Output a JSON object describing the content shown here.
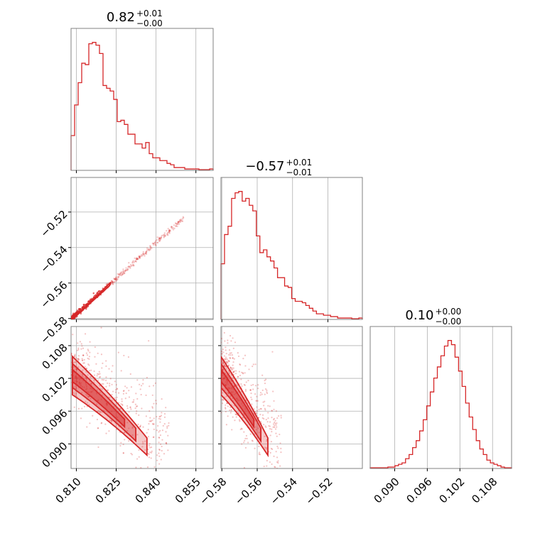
{
  "chart_data": {
    "type": "corner",
    "color": "#d62728",
    "parameters": [
      {
        "value": "0.82",
        "err_plus": "+0.01",
        "err_minus": "−0.00"
      },
      {
        "value": "−0.57",
        "err_plus": "+0.01",
        "err_minus": "−0.01"
      },
      {
        "value": "0.10",
        "err_plus": "+0.00",
        "err_minus": "−0.00"
      }
    ],
    "ranges": [
      [
        0.808,
        0.8615
      ],
      [
        -0.5805,
        -0.5005
      ],
      [
        0.0855,
        0.1115
      ]
    ],
    "ticks": [
      [
        "0.810",
        "0.825",
        "0.840",
        "0.855"
      ],
      [
        "−0.58",
        "−0.56",
        "−0.54",
        "−0.52"
      ],
      [
        "0.090",
        "0.096",
        "0.102",
        "0.108"
      ]
    ],
    "tick_values": [
      [
        0.81,
        0.825,
        0.84,
        0.855
      ],
      [
        -0.58,
        -0.56,
        -0.54,
        -0.52
      ],
      [
        0.09,
        0.096,
        0.102,
        0.108
      ]
    ],
    "histograms": [
      {
        "param": 0,
        "values": [
          0.25,
          0.47,
          0.63,
          0.77,
          0.76,
          0.91,
          0.92,
          0.9,
          0.84,
          0.61,
          0.59,
          0.57,
          0.51,
          0.35,
          0.36,
          0.33,
          0.26,
          0.26,
          0.19,
          0.19,
          0.16,
          0.2,
          0.12,
          0.09,
          0.09,
          0.07,
          0.07,
          0.05,
          0.04,
          0.02,
          0.02,
          0.02,
          0.01,
          0.01,
          0.01,
          0.01,
          0.005,
          0.005,
          0.005,
          0.01
        ]
      },
      {
        "param": 1,
        "values": [
          0.4,
          0.61,
          0.67,
          0.87,
          0.91,
          0.92,
          0.85,
          0.87,
          0.82,
          0.78,
          0.6,
          0.48,
          0.5,
          0.45,
          0.42,
          0.37,
          0.3,
          0.3,
          0.24,
          0.23,
          0.15,
          0.13,
          0.13,
          0.12,
          0.1,
          0.08,
          0.06,
          0.04,
          0.04,
          0.03,
          0.03,
          0.02,
          0.02,
          0.01,
          0.01,
          0.01,
          0.01,
          0.005,
          0.005,
          0.01
        ]
      },
      {
        "param": 2,
        "values": [
          0.005,
          0.005,
          0.005,
          0.005,
          0.005,
          0.01,
          0.01,
          0.02,
          0.03,
          0.04,
          0.07,
          0.1,
          0.15,
          0.2,
          0.27,
          0.35,
          0.45,
          0.55,
          0.65,
          0.73,
          0.81,
          0.88,
          0.92,
          0.89,
          0.8,
          0.7,
          0.59,
          0.47,
          0.37,
          0.28,
          0.2,
          0.14,
          0.1,
          0.06,
          0.04,
          0.03,
          0.02,
          0.01,
          0.005,
          0.005
        ]
      }
    ],
    "pairs": [
      {
        "x_param": 0,
        "y_param": 1
      },
      {
        "x_param": 0,
        "y_param": 2
      },
      {
        "x_param": 1,
        "y_param": 2
      }
    ],
    "xlabel": "",
    "ylabel": "",
    "grid": true
  }
}
